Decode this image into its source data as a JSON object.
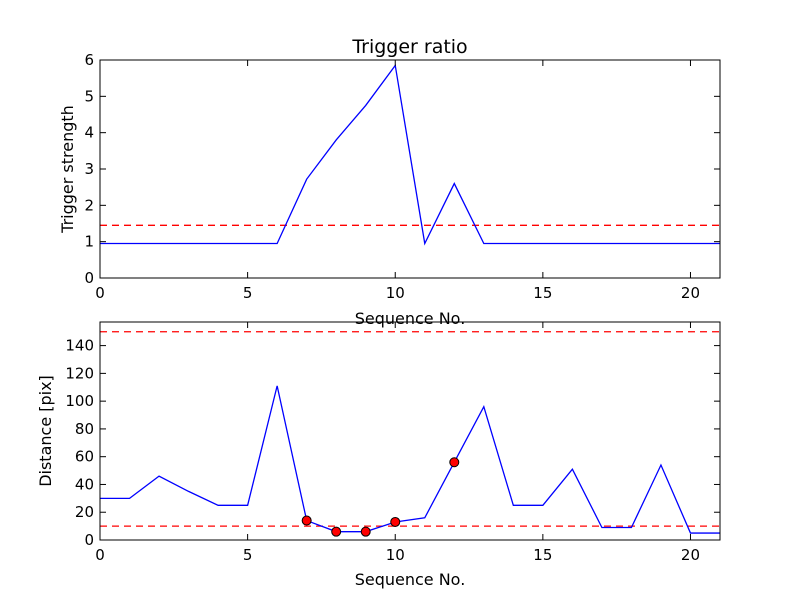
{
  "chart_data": [
    {
      "type": "line",
      "title": "Trigger ratio",
      "xlabel": "Sequence No.",
      "ylabel": "Trigger strength",
      "xlim": [
        0,
        21
      ],
      "ylim": [
        0,
        6
      ],
      "xticks": [
        0,
        5,
        10,
        15,
        20
      ],
      "yticks": [
        0,
        1,
        2,
        3,
        4,
        5,
        6
      ],
      "grid": false,
      "series": [
        {
          "color": "#0000ff",
          "style": "solid",
          "x": [
            0,
            1,
            2,
            3,
            4,
            5,
            6,
            7,
            8,
            9,
            10,
            11,
            12,
            13,
            14,
            15,
            16,
            17,
            18,
            19,
            20,
            21
          ],
          "values": [
            0.95,
            0.95,
            0.95,
            0.95,
            0.95,
            0.95,
            0.95,
            2.72,
            3.8,
            4.75,
            5.85,
            0.95,
            2.6,
            0.95,
            0.95,
            0.95,
            0.95,
            0.95,
            0.95,
            0.95,
            0.95,
            0.95
          ]
        }
      ],
      "hlines": [
        {
          "y": 1.45,
          "color": "#ff0000",
          "style": "dashed"
        }
      ]
    },
    {
      "type": "line",
      "title": "",
      "xlabel": "Sequence No.",
      "ylabel": "Distance [pix]",
      "xlim": [
        0,
        21
      ],
      "ylim": [
        0,
        157
      ],
      "xticks": [
        0,
        5,
        10,
        15,
        20
      ],
      "yticks": [
        0,
        20,
        40,
        60,
        80,
        100,
        120,
        140
      ],
      "grid": false,
      "series": [
        {
          "color": "#0000ff",
          "style": "solid",
          "x": [
            0,
            1,
            2,
            3,
            4,
            5,
            6,
            7,
            8,
            9,
            10,
            11,
            12,
            13,
            14,
            15,
            16,
            17,
            18,
            19,
            20,
            21
          ],
          "values": [
            30,
            30,
            46,
            35,
            25,
            25,
            111,
            14,
            6,
            6,
            13,
            16,
            56,
            96,
            25,
            25,
            51,
            9,
            9,
            54,
            5,
            5
          ]
        }
      ],
      "markers": {
        "color": "#ff0000",
        "x": [
          7,
          8,
          9,
          10,
          12
        ],
        "values": [
          14,
          6,
          6,
          13,
          56
        ]
      },
      "hlines": [
        {
          "y": 150,
          "color": "#ff0000",
          "style": "dashed"
        },
        {
          "y": 10,
          "color": "#ff0000",
          "style": "dashed"
        }
      ]
    }
  ]
}
